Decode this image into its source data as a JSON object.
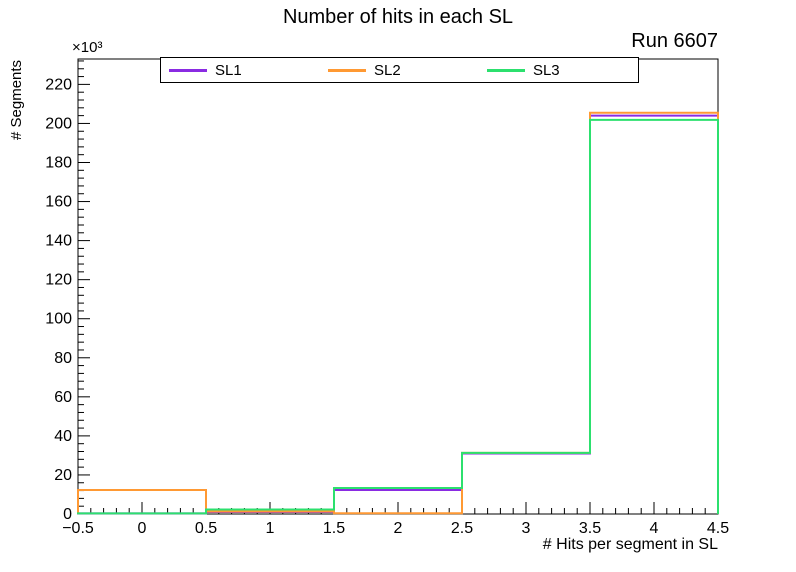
{
  "title": "Number of hits in each SL",
  "run_label": "Run 6607",
  "axes": {
    "y_label": "# Segments",
    "y_multiplier": "×10³",
    "x_label": "# Hits per segment in SL",
    "y_tick_labels": [
      "0",
      "20",
      "40",
      "60",
      "80",
      "100",
      "120",
      "140",
      "160",
      "180",
      "200",
      "220"
    ],
    "y_tick_values": [
      0,
      20000,
      40000,
      60000,
      80000,
      100000,
      120000,
      140000,
      160000,
      180000,
      200000,
      220000
    ],
    "x_tick_labels": [
      "−0.5",
      "0",
      "0.5",
      "1",
      "1.5",
      "2",
      "2.5",
      "3",
      "3.5",
      "4",
      "4.5"
    ],
    "x_tick_values": [
      -0.5,
      0,
      0.5,
      1,
      1.5,
      2,
      2.5,
      3,
      3.5,
      4,
      4.5
    ]
  },
  "legend": {
    "entries": [
      {
        "label": "SL1",
        "color": "#8a2be2"
      },
      {
        "label": "SL2",
        "color": "#ff9933"
      },
      {
        "label": "SL3",
        "color": "#2ce06e"
      }
    ]
  },
  "chart_data": {
    "type": "step-histogram",
    "title": "Number of hits in each SL",
    "annotation": "Run 6607",
    "xlabel": "# Hits per segment in SL",
    "ylabel": "# Segments",
    "y_axis_unit": "counts ×10³ shown on axis",
    "bin_edges": [
      -0.5,
      0.5,
      1.5,
      2.5,
      3.5,
      4.5
    ],
    "xlim": [
      -0.5,
      4.5
    ],
    "ylim": [
      0,
      233000
    ],
    "grid": false,
    "legend_position": "top-inside",
    "series": [
      {
        "name": "SL1",
        "color": "#8a2be2",
        "values": [
          300,
          1000,
          12300,
          31000,
          204000
        ]
      },
      {
        "name": "SL2",
        "color": "#ff9933",
        "values": [
          12300,
          1300,
          400,
          31300,
          205500
        ]
      },
      {
        "name": "SL3",
        "color": "#2ce06e",
        "values": [
          300,
          2300,
          13300,
          31300,
          201800
        ]
      }
    ]
  }
}
